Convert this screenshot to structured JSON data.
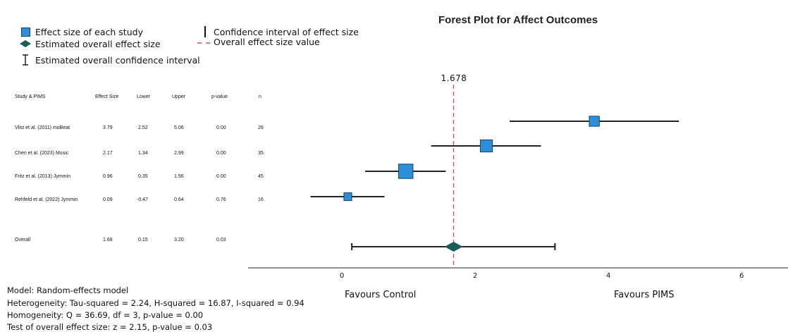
{
  "chart_data": {
    "type": "forest",
    "title": "Forest Plot for Affect Outcomes",
    "legend": {
      "effect_size": "Effect size of each study",
      "overall_effect": "Estimated overall effect size",
      "overall_ci": "Estimated overall confidence interval",
      "ci": "Confidence interval of effect size",
      "overall_line": "Overall effect size value"
    },
    "columns": [
      "Study & PIMS",
      "Effect Size",
      "Lower",
      "Upper",
      "p-value",
      "n"
    ],
    "studies": [
      {
        "study": "Vlist et al. (2011) moBeat",
        "es": "3.79",
        "lower": "2.52",
        "upper": "5.06",
        "p": "0.00",
        "n": "26",
        "es_v": 3.79,
        "lower_v": 2.52,
        "upper_v": 5.06,
        "n_v": 26
      },
      {
        "study": "Chen et al. (2023) Music",
        "es": "2.17",
        "lower": "1.34",
        "upper": "2.99",
        "p": "0.00",
        "n": "35",
        "es_v": 2.17,
        "lower_v": 1.34,
        "upper_v": 2.99,
        "n_v": 35
      },
      {
        "study": "Fritz et al. (2013) Jymmin",
        "es": "0.96",
        "lower": "0.35",
        "upper": "1.56",
        "p": "0.00",
        "n": "45",
        "es_v": 0.96,
        "lower_v": 0.35,
        "upper_v": 1.56,
        "n_v": 45
      },
      {
        "study": "Rehfeld et al. (2022) Jymmin",
        "es": "0.09",
        "lower": "-0.47",
        "upper": "0.64",
        "p": "0.76",
        "n": "16",
        "es_v": 0.09,
        "lower_v": -0.47,
        "upper_v": 0.64,
        "n_v": 16
      }
    ],
    "overall": {
      "study": "Overall",
      "es": "1.68",
      "lower": "0.15",
      "upper": "3.20",
      "p": "0.03",
      "es_v": 1.678,
      "lower_v": 0.15,
      "upper_v": 3.2
    },
    "ref_value_label": "1.678",
    "ref_value": 1.678,
    "xlim": [
      -1.4,
      6.6
    ],
    "xticks": [
      "0",
      "2",
      "4",
      "6"
    ],
    "xtick_values": [
      0,
      2,
      4,
      6
    ],
    "xlabel_left": "Favours Control",
    "xlabel_right": "Favours PIMS",
    "colors": {
      "box": "#2b8fd9",
      "box_edge": "#1b3f66",
      "diamond": "#155e5a",
      "ref_line": "#e8434f",
      "line": "#222222"
    }
  },
  "stats": {
    "model": "Model: Random-effects model",
    "heterogeneity": "Heterogeneity: Tau-squared = 2.24, H-squared = 16.87, I-squared = 0.94",
    "homogeneity": "Homogeneity: Q = 36.69, df = 3, p-value = 0.00",
    "overall_test": "Test of overall effect size: z = 2.15, p-value = 0.03"
  }
}
